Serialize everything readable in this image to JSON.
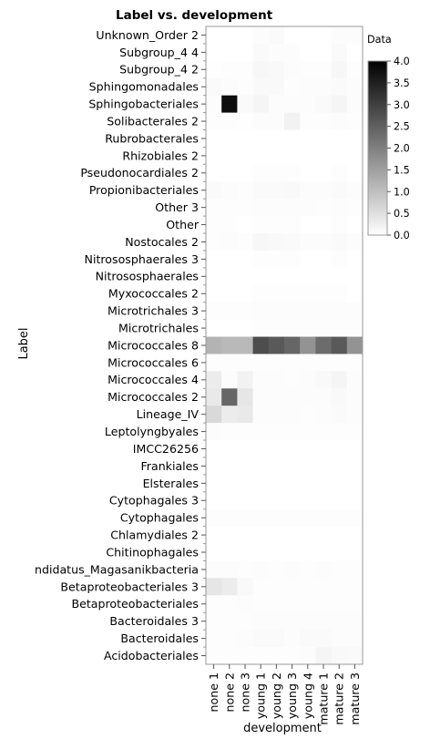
{
  "chart_data": {
    "type": "heatmap",
    "title": "Label vs. development",
    "xlabel": "development",
    "ylabel": "Label",
    "legend": {
      "title": "Data",
      "min": 0.0,
      "max": 4.0,
      "ticks": [
        "4.0",
        "3.5",
        "3.0",
        "2.5",
        "2.0",
        "1.5",
        "1.0",
        "0.5",
        "0.0"
      ],
      "colors": [
        "#ffffff",
        "#000000"
      ],
      "placement": "right"
    },
    "x_categories": [
      "none 1",
      "none 2",
      "none 3",
      "young 1",
      "young 2",
      "young 3",
      "young 4",
      "mature 1",
      "mature 2",
      "mature 3"
    ],
    "y_categories": [
      "Unknown_Order 2",
      "Subgroup_4 4",
      "Subgroup_4 2",
      "Sphingomonadales",
      "Sphingobacteriales",
      "Solibacterales 2",
      "Rubrobacterales",
      "Rhizobiales 2",
      "Pseudonocardiales 2",
      "Propionibacteriales",
      "Other 3",
      "Other",
      "Nostocales 2",
      "Nitrososphaerales 3",
      "Nitrososphaerales",
      "Myxococcales 2",
      "Microtrichales 3",
      "Microtrichales",
      "Micrococcales 8",
      "Micrococcales 6",
      "Micrococcales 4",
      "Micrococcales 2",
      "Lineage_IV",
      "Leptolyngbyales",
      "IMCC26256",
      "Frankiales",
      "Elsterales",
      "Cytophagales 3",
      "Cytophagales",
      "Chlamydiales 2",
      "Chitinophagales",
      "ndidatus_Magasanikbacteria",
      "Betaproteobacteriales 3",
      "Betaproteobacteriales",
      "Bacteroidales 3",
      "Bacteroidales",
      "Acidobacteriales"
    ],
    "rows": [
      [
        0.0,
        0.0,
        0.0,
        0.05,
        0.08,
        0.0,
        0.0,
        0.0,
        0.05,
        0.05
      ],
      [
        0.0,
        0.0,
        0.0,
        0.08,
        0.05,
        0.05,
        0.0,
        0.0,
        0.08,
        0.0
      ],
      [
        0.02,
        0.03,
        0.03,
        0.12,
        0.1,
        0.05,
        0.03,
        0.03,
        0.12,
        0.03
      ],
      [
        0.08,
        0.05,
        0.03,
        0.1,
        0.1,
        0.03,
        0.05,
        0.05,
        0.08,
        0.05
      ],
      [
        0.05,
        3.8,
        0.08,
        0.15,
        0.05,
        0.05,
        0.05,
        0.08,
        0.15,
        0.05
      ],
      [
        0.03,
        0.03,
        0.02,
        0.05,
        0.05,
        0.2,
        0.03,
        0.03,
        0.05,
        0.03
      ],
      [
        0.0,
        0.0,
        0.0,
        0.0,
        0.0,
        0.0,
        0.0,
        0.0,
        0.0,
        0.0
      ],
      [
        0.0,
        0.0,
        0.0,
        0.0,
        0.0,
        0.0,
        0.0,
        0.0,
        0.0,
        0.0
      ],
      [
        0.0,
        0.0,
        0.0,
        0.03,
        0.03,
        0.03,
        0.0,
        0.0,
        0.03,
        0.0
      ],
      [
        0.08,
        0.05,
        0.03,
        0.08,
        0.08,
        0.1,
        0.05,
        0.05,
        0.08,
        0.05
      ],
      [
        0.03,
        0.03,
        0.03,
        0.05,
        0.05,
        0.05,
        0.05,
        0.03,
        0.05,
        0.03
      ],
      [
        0.03,
        0.03,
        0.0,
        0.03,
        0.03,
        0.03,
        0.0,
        0.0,
        0.03,
        0.0
      ],
      [
        0.03,
        0.05,
        0.03,
        0.12,
        0.1,
        0.08,
        0.05,
        0.05,
        0.08,
        0.05
      ],
      [
        0.0,
        0.0,
        0.0,
        0.03,
        0.03,
        0.03,
        0.0,
        0.0,
        0.03,
        0.0
      ],
      [
        0.0,
        0.0,
        0.0,
        0.0,
        0.0,
        0.0,
        0.0,
        0.0,
        0.0,
        0.0
      ],
      [
        0.0,
        0.0,
        0.0,
        0.03,
        0.03,
        0.03,
        0.03,
        0.03,
        0.03,
        0.0
      ],
      [
        0.03,
        0.03,
        0.03,
        0.05,
        0.05,
        0.05,
        0.05,
        0.05,
        0.05,
        0.05
      ],
      [
        0.0,
        0.0,
        0.0,
        0.03,
        0.03,
        0.03,
        0.03,
        0.03,
        0.03,
        0.03
      ],
      [
        1.2,
        1.1,
        1.1,
        2.8,
        2.6,
        2.4,
        1.7,
        2.3,
        2.6,
        1.7
      ],
      [
        0.03,
        0.03,
        0.03,
        0.03,
        0.03,
        0.03,
        0.03,
        0.03,
        0.03,
        0.03
      ],
      [
        0.3,
        0.05,
        0.2,
        0.05,
        0.05,
        0.03,
        0.05,
        0.1,
        0.15,
        0.05
      ],
      [
        0.35,
        2.4,
        0.4,
        0.05,
        0.05,
        0.05,
        0.05,
        0.05,
        0.1,
        0.05
      ],
      [
        0.6,
        0.3,
        0.35,
        0.05,
        0.05,
        0.05,
        0.03,
        0.05,
        0.08,
        0.05
      ],
      [
        0.05,
        0.03,
        0.03,
        0.03,
        0.03,
        0.03,
        0.03,
        0.03,
        0.03,
        0.03
      ],
      [
        0.0,
        0.0,
        0.0,
        0.0,
        0.0,
        0.0,
        0.0,
        0.0,
        0.0,
        0.0
      ],
      [
        0.0,
        0.0,
        0.0,
        0.0,
        0.0,
        0.0,
        0.0,
        0.0,
        0.0,
        0.0
      ],
      [
        0.0,
        0.0,
        0.0,
        0.0,
        0.0,
        0.0,
        0.0,
        0.0,
        0.0,
        0.0
      ],
      [
        0.0,
        0.0,
        0.0,
        0.0,
        0.0,
        0.0,
        0.0,
        0.0,
        0.0,
        0.0
      ],
      [
        0.03,
        0.03,
        0.03,
        0.03,
        0.03,
        0.03,
        0.03,
        0.03,
        0.03,
        0.03
      ],
      [
        0.0,
        0.0,
        0.0,
        0.0,
        0.0,
        0.0,
        0.0,
        0.0,
        0.0,
        0.0
      ],
      [
        0.0,
        0.0,
        0.0,
        0.0,
        0.0,
        0.0,
        0.0,
        0.0,
        0.0,
        0.0
      ],
      [
        0.05,
        0.05,
        0.03,
        0.05,
        0.03,
        0.05,
        0.03,
        0.05,
        0.03,
        0.03
      ],
      [
        0.4,
        0.3,
        0.1,
        0.03,
        0.03,
        0.03,
        0.03,
        0.03,
        0.03,
        0.03
      ],
      [
        0.03,
        0.03,
        0.05,
        0.03,
        0.03,
        0.03,
        0.03,
        0.03,
        0.03,
        0.03
      ],
      [
        0.03,
        0.03,
        0.03,
        0.05,
        0.05,
        0.05,
        0.05,
        0.05,
        0.05,
        0.05
      ],
      [
        0.03,
        0.03,
        0.05,
        0.08,
        0.08,
        0.05,
        0.08,
        0.08,
        0.05,
        0.05
      ],
      [
        0.03,
        0.03,
        0.03,
        0.03,
        0.03,
        0.03,
        0.05,
        0.15,
        0.1,
        0.08
      ]
    ]
  }
}
